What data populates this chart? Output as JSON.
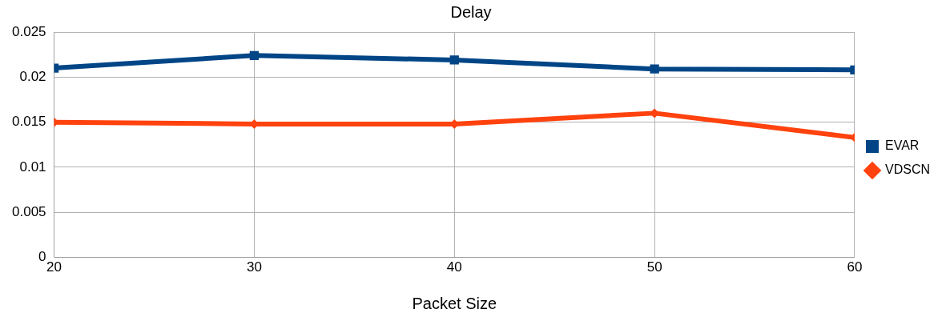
{
  "chart_data": {
    "type": "line",
    "title": "Delay",
    "xlabel": "Packet Size",
    "x": [
      20,
      30,
      40,
      50,
      60
    ],
    "xlim": [
      20,
      60
    ],
    "xticks": [
      20,
      30,
      40,
      50,
      60
    ],
    "ylim": [
      0,
      0.025
    ],
    "yticks": [
      0,
      0.005,
      0.01,
      0.015,
      0.02,
      0.025
    ],
    "grid": true,
    "legend": "right",
    "line_style": "solid",
    "series": [
      {
        "name": "EVAR",
        "color": "#004586",
        "marker": "square",
        "values": [
          0.021,
          0.0224,
          0.0219,
          0.0209,
          0.0208
        ]
      },
      {
        "name": "VDSCN",
        "color": "#ff420e",
        "marker": "diamond",
        "values": [
          0.015,
          0.0148,
          0.0148,
          0.016,
          0.0133
        ]
      }
    ]
  }
}
